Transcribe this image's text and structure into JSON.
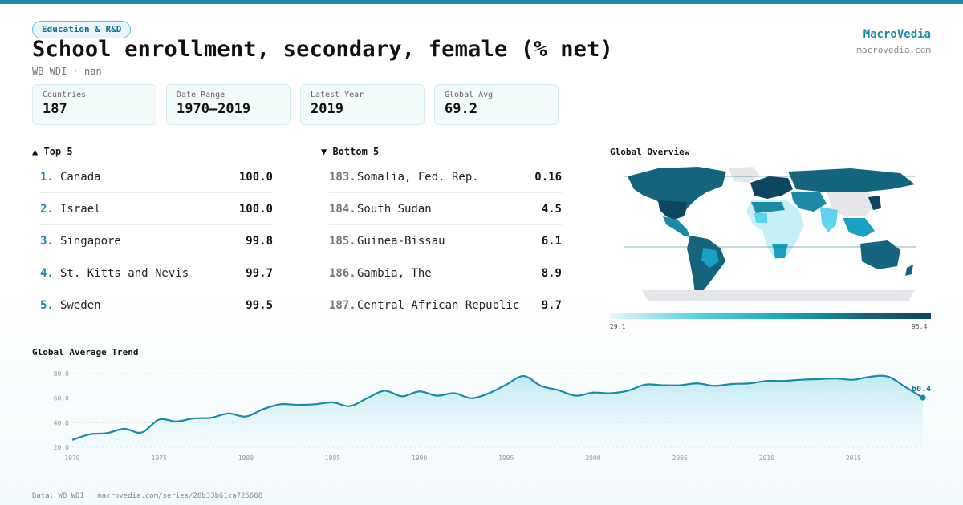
{
  "header": {
    "category": "Education & R&D",
    "title": "School enrollment, secondary, female (% net)",
    "subtitle": "WB WDI · nan",
    "brand_name": "MacroVedia",
    "brand_url": "macrovedia.com"
  },
  "stats": [
    {
      "label": "Countries",
      "value": "187"
    },
    {
      "label": "Date Range",
      "value": "1970–2019"
    },
    {
      "label": "Latest Year",
      "value": "2019"
    },
    {
      "label": "Global Avg",
      "value": "69.2"
    }
  ],
  "top5": {
    "heading": "▲ Top 5",
    "items": [
      {
        "rank": "1.",
        "name": "Canada",
        "value": "100.0"
      },
      {
        "rank": "2.",
        "name": "Israel",
        "value": "100.0"
      },
      {
        "rank": "3.",
        "name": "Singapore",
        "value": "99.8"
      },
      {
        "rank": "4.",
        "name": "St. Kitts and Nevis",
        "value": "99.7"
      },
      {
        "rank": "5.",
        "name": "Sweden",
        "value": "99.5"
      }
    ]
  },
  "bottom5": {
    "heading": "▼ Bottom 5",
    "items": [
      {
        "rank": "183.",
        "name": "Somalia, Fed. Rep.",
        "value": "0.16"
      },
      {
        "rank": "184.",
        "name": "South Sudan",
        "value": "4.5"
      },
      {
        "rank": "185.",
        "name": "Guinea-Bissau",
        "value": "6.1"
      },
      {
        "rank": "186.",
        "name": "Gambia, The",
        "value": "8.9"
      },
      {
        "rank": "187.",
        "name": "Central African Republic",
        "value": "9.7"
      }
    ]
  },
  "map": {
    "title": "Global Overview",
    "scale_min": "29.1",
    "scale_max": "95.4",
    "colors": {
      "low": "#e6f8fc",
      "mid": "#1aa1c2",
      "high": "#0e4660",
      "no_data": "#e4e6ea"
    }
  },
  "trend_title": "Global Average Trend",
  "footer": "Data: WB WDI · macrovedia.com/series/28b33b61ca725668",
  "colors": {
    "accent": "#1a8aa5",
    "line": "#1a8aa5",
    "fill": "#bfe8f1"
  },
  "chart_data": {
    "type": "area",
    "title": "Global Average Trend",
    "xlabel": "",
    "ylabel": "",
    "x": [
      1970,
      1971,
      1972,
      1973,
      1974,
      1975,
      1976,
      1977,
      1978,
      1979,
      1980,
      1981,
      1982,
      1983,
      1984,
      1985,
      1986,
      1987,
      1988,
      1989,
      1990,
      1991,
      1992,
      1993,
      1994,
      1995,
      1996,
      1997,
      1998,
      1999,
      2000,
      2001,
      2002,
      2003,
      2004,
      2005,
      2006,
      2007,
      2008,
      2009,
      2010,
      2011,
      2012,
      2013,
      2014,
      2015,
      2016,
      2017,
      2018,
      2019
    ],
    "series": [
      {
        "values": [
          26.0,
          30.5,
          31.5,
          35.0,
          32.0,
          42.5,
          41.0,
          43.5,
          44.0,
          47.5,
          45.0,
          51.0,
          55.0,
          54.5,
          55.0,
          56.5,
          53.5,
          60.0,
          66.0,
          61.5,
          65.5,
          62.0,
          64.0,
          60.0,
          64.0,
          71.0,
          78.0,
          70.0,
          66.5,
          62.0,
          64.5,
          64.0,
          66.0,
          71.0,
          70.5,
          70.5,
          72.0,
          70.0,
          71.5,
          72.0,
          74.0,
          74.0,
          75.0,
          75.5,
          76.0,
          75.0,
          77.5,
          77.5,
          69.0,
          60.4
        ]
      }
    ],
    "xlim": [
      1970,
      2019
    ],
    "ylim": [
      20,
      80
    ],
    "yticks": [
      "20.0",
      "40.0",
      "60.0",
      "80.0"
    ],
    "xticks": [
      "1970",
      "1975",
      "1980",
      "1985",
      "1990",
      "1995",
      "2000",
      "2005",
      "2010",
      "2015"
    ],
    "last_label": "60.4",
    "grid": true,
    "legend": "none"
  }
}
